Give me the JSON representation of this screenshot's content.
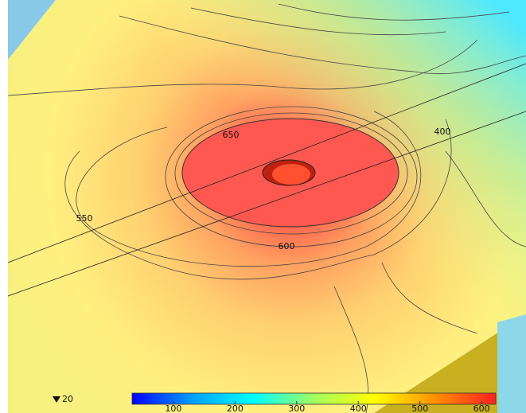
{
  "chart_data": {
    "type": "contour",
    "contour_labels": [
      650,
      400,
      550,
      600
    ],
    "min_value": 20,
    "colorbar": {
      "lim": [
        33,
        623
      ],
      "ticks": [
        100,
        200,
        300,
        400,
        500,
        600
      ],
      "colors": [
        "#0000ff",
        "#00a0ff",
        "#00ffff",
        "#a0ff60",
        "#ffff00",
        "#ff9000",
        "#ff2020"
      ]
    }
  }
}
